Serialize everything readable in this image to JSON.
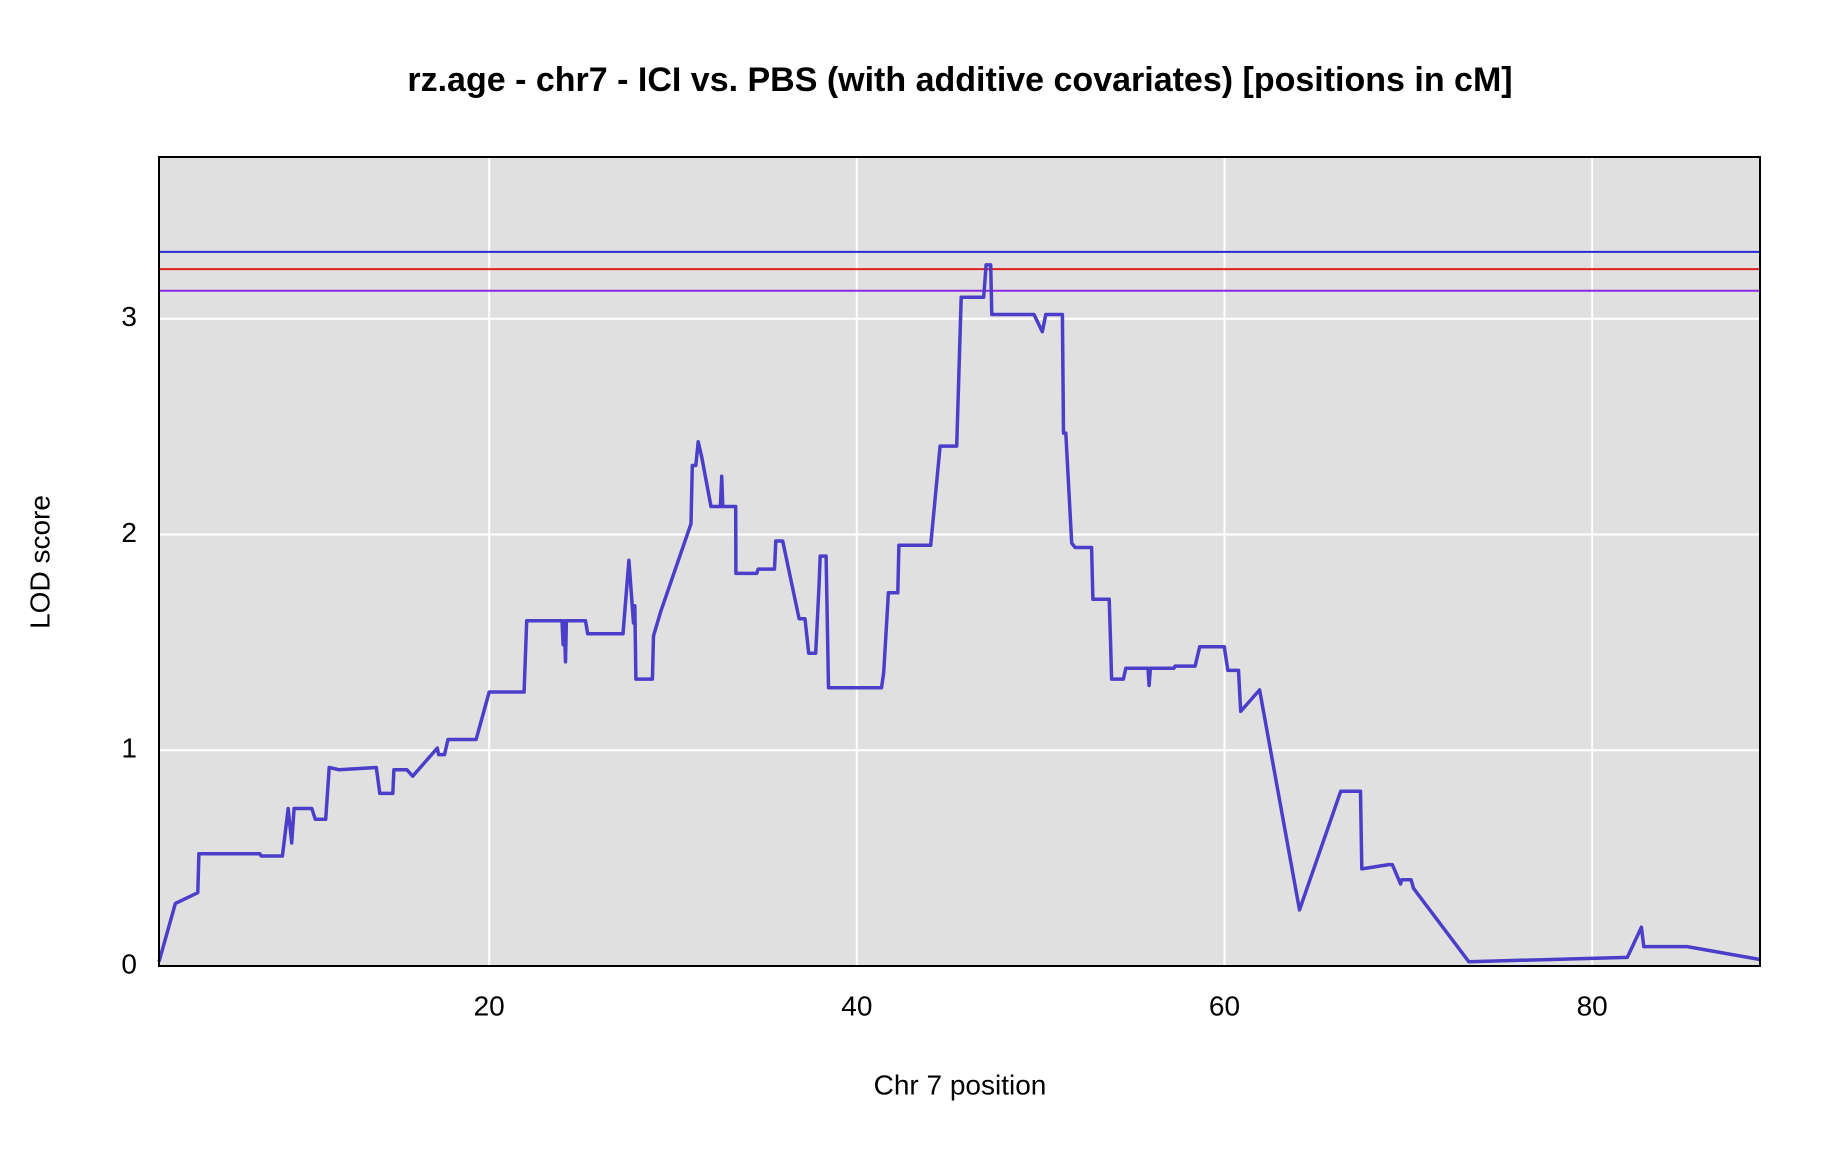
{
  "chart_data": {
    "type": "line",
    "title": "rz.age - chr7 - ICI vs. PBS (with additive covariates) [positions in cM]",
    "xlabel": "Chr 7 position",
    "ylabel": "LOD score",
    "xlim": [
      2.04,
      89.13
    ],
    "ylim": [
      0,
      3.75
    ],
    "xticks": [
      20,
      40,
      60,
      80
    ],
    "yticks": [
      0,
      1,
      2,
      3
    ],
    "grid": true,
    "hlines": [
      {
        "value": 3.31,
        "color": "#2a2ad6"
      },
      {
        "value": 3.23,
        "color": "#e02020"
      },
      {
        "value": 3.13,
        "color": "#8a2be2"
      }
    ],
    "series": [
      {
        "name": "rz.age",
        "color": "#4b3fc9",
        "x": [
          2.04,
          2.93,
          4.15,
          4.21,
          7.53,
          7.6,
          8.75,
          9.07,
          9.26,
          9.39,
          10.35,
          10.54,
          11.11,
          11.3,
          11.82,
          13.86,
          14.05,
          14.76,
          14.82,
          15.52,
          15.84,
          17.18,
          17.25,
          17.57,
          17.76,
          19.29,
          20.0,
          21.9,
          22.04,
          23.96,
          24.02,
          24.08,
          24.15,
          24.2,
          25.24,
          25.36,
          27.28,
          27.6,
          27.85,
          27.92,
          27.98,
          28.88,
          28.94,
          29.32,
          30.98,
          31.05,
          31.24,
          31.37,
          31.56,
          32.07,
          32.58,
          32.65,
          32.71,
          33.41,
          33.42,
          34.12,
          34.56,
          34.63,
          35.52,
          35.59,
          35.97,
          36.86,
          37.18,
          37.38,
          37.76,
          37.95,
          38.01,
          38.33,
          38.46,
          41.34,
          41.46,
          41.72,
          42.23,
          42.29,
          44.02,
          44.53,
          45.43,
          45.68,
          46.9,
          47.03,
          47.28,
          47.34,
          49.64,
          50.09,
          50.28,
          51.18,
          51.24,
          51.37,
          51.69,
          51.88,
          52.77,
          52.84,
          53.73,
          53.8,
          53.86,
          54.5,
          54.63,
          55.84,
          55.9,
          55.97,
          57.25,
          57.31,
          58.4,
          58.65,
          59.99,
          60.18,
          60.76,
          60.88,
          61.91,
          64.08,
          66.32,
          66.89,
          67.02,
          67.4,
          67.47,
          68.94,
          69.13,
          69.58,
          69.64,
          70.15,
          70.28,
          73.29,
          81.91,
          82.68,
          82.81,
          85.17,
          89.13
        ],
        "values": [
          0.02,
          0.29,
          0.34,
          0.52,
          0.52,
          0.51,
          0.51,
          0.73,
          0.57,
          0.73,
          0.73,
          0.68,
          0.68,
          0.92,
          0.91,
          0.92,
          0.8,
          0.8,
          0.91,
          0.91,
          0.88,
          1.01,
          0.98,
          0.98,
          1.05,
          1.05,
          1.27,
          1.27,
          1.6,
          1.6,
          1.49,
          1.6,
          1.41,
          1.6,
          1.6,
          1.54,
          1.54,
          1.88,
          1.59,
          1.67,
          1.33,
          1.33,
          1.53,
          1.64,
          2.05,
          2.32,
          2.32,
          2.43,
          2.36,
          2.13,
          2.13,
          2.27,
          2.13,
          2.13,
          1.82,
          1.82,
          1.82,
          1.84,
          1.84,
          1.97,
          1.97,
          1.61,
          1.61,
          1.45,
          1.45,
          1.77,
          1.9,
          1.9,
          1.29,
          1.29,
          1.36,
          1.73,
          1.73,
          1.95,
          1.95,
          2.41,
          2.41,
          3.1,
          3.1,
          3.25,
          3.25,
          3.02,
          3.02,
          2.94,
          3.02,
          3.02,
          2.47,
          2.47,
          1.96,
          1.94,
          1.94,
          1.7,
          1.7,
          1.51,
          1.33,
          1.33,
          1.38,
          1.38,
          1.3,
          1.38,
          1.38,
          1.39,
          1.39,
          1.48,
          1.48,
          1.37,
          1.37,
          1.18,
          1.28,
          0.26,
          0.81,
          0.81,
          0.81,
          0.81,
          0.45,
          0.47,
          0.47,
          0.38,
          0.4,
          0.4,
          0.36,
          0.02,
          0.04,
          0.18,
          0.09,
          0.09,
          0.03
        ]
      }
    ]
  }
}
